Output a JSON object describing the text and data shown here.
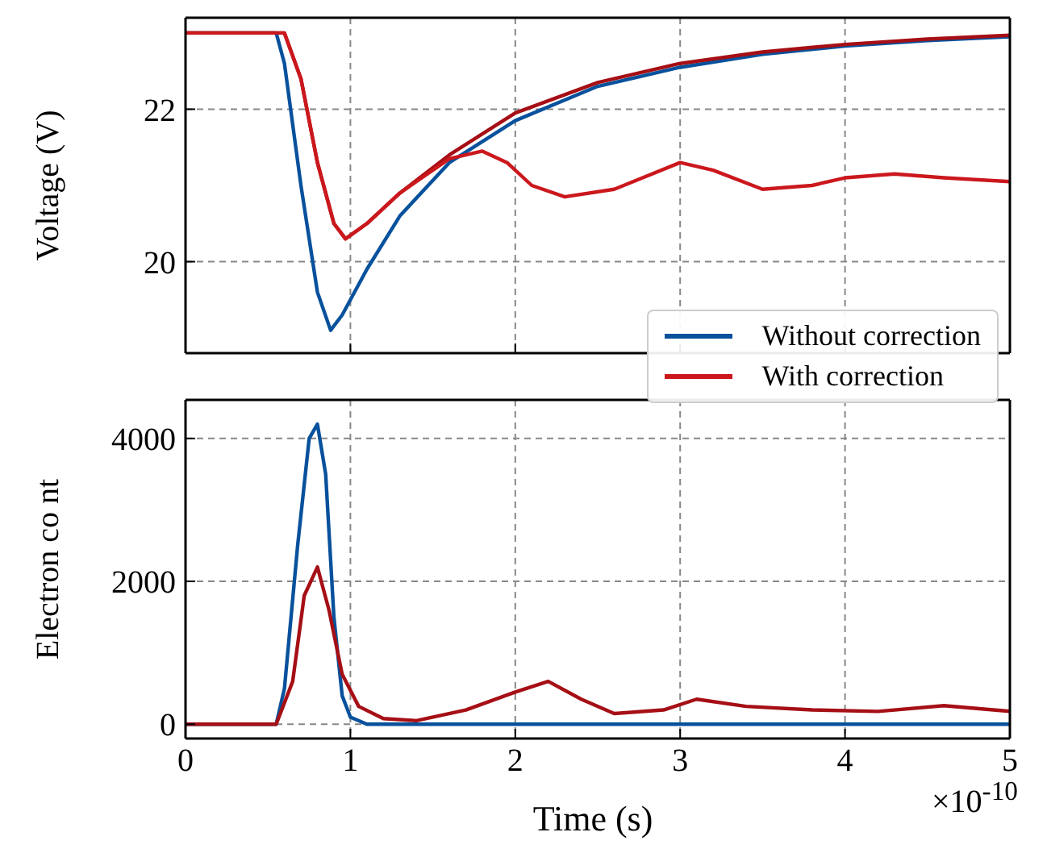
{
  "chart_data": [
    {
      "type": "line",
      "ylabel": "Voltage (V)",
      "xlim": [
        0,
        5
      ],
      "xticks": [
        0,
        1,
        2,
        3,
        4,
        5
      ],
      "ylim": [
        18.8,
        23.2
      ],
      "yticks": [
        20,
        22
      ],
      "grid": true,
      "tick_labels": "y",
      "legend": "bottom right",
      "line_style": "solid",
      "marker": "none",
      "series": [
        {
          "name": "Without correction",
          "color": "#08519c",
          "x": [
            0,
            0.55,
            0.6,
            0.7,
            0.8,
            0.88,
            0.95,
            1.1,
            1.3,
            1.6,
            2.0,
            2.5,
            3.0,
            3.5,
            4.0,
            4.5,
            5.0
          ],
          "values": [
            23.0,
            23.0,
            22.6,
            21.0,
            19.6,
            19.1,
            19.3,
            19.9,
            20.6,
            21.3,
            21.85,
            22.3,
            22.55,
            22.72,
            22.83,
            22.9,
            22.95
          ]
        },
        {
          "color": "#a50f15",
          "x": [
            0,
            0.6,
            0.7,
            0.8,
            0.9,
            0.97,
            1.1,
            1.3,
            1.6,
            2.0,
            2.5,
            3.0,
            3.5,
            4.0,
            4.5,
            5.0
          ],
          "values": [
            23.0,
            23.0,
            22.4,
            21.3,
            20.5,
            20.3,
            20.5,
            20.9,
            21.4,
            21.95,
            22.35,
            22.6,
            22.75,
            22.85,
            22.92,
            22.97
          ]
        },
        {
          "name": "With correction",
          "color": "#cb181d",
          "x": [
            0,
            0.6,
            0.7,
            0.8,
            0.9,
            0.97,
            1.1,
            1.3,
            1.6,
            1.8,
            1.95,
            2.1,
            2.3,
            2.6,
            3.0,
            3.2,
            3.5,
            3.8,
            4.0,
            4.3,
            4.6,
            5.0
          ],
          "values": [
            23.0,
            23.0,
            22.4,
            21.3,
            20.5,
            20.3,
            20.5,
            20.9,
            21.35,
            21.45,
            21.3,
            21.0,
            20.85,
            20.95,
            21.3,
            21.2,
            20.95,
            21.0,
            21.1,
            21.15,
            21.1,
            21.05
          ]
        }
      ]
    },
    {
      "type": "line",
      "ylabel": "Electron co nt",
      "xlabel": "Time (s)",
      "annotations": [
        "×10$^{-10}$"
      ],
      "xlim": [
        0,
        5
      ],
      "xticks": [
        0,
        1,
        2,
        3,
        4,
        5
      ],
      "ylim": [
        -200,
        4540
      ],
      "yticks": [
        0,
        2000,
        4000
      ],
      "grid": true,
      "line_style": "solid",
      "marker": "none",
      "series": [
        {
          "color": "#08519c",
          "x": [
            0,
            0.55,
            0.6,
            0.68,
            0.75,
            0.8,
            0.85,
            0.9,
            0.95,
            1.0,
            1.1,
            5.0
          ],
          "values": [
            0,
            0,
            500,
            2500,
            4000,
            4200,
            3500,
            1500,
            400,
            100,
            0,
            0
          ]
        },
        {
          "color": "#a50f15",
          "x": [
            0,
            0.55,
            0.65,
            0.72,
            0.8,
            0.87,
            0.95,
            1.05,
            1.2,
            1.4,
            1.7,
            2.0,
            2.2,
            2.4,
            2.6,
            2.9,
            3.1,
            3.4,
            3.8,
            4.2,
            4.6,
            5.0
          ],
          "values": [
            0,
            0,
            600,
            1800,
            2200,
            1600,
            700,
            250,
            80,
            50,
            200,
            450,
            600,
            350,
            150,
            200,
            350,
            250,
            200,
            180,
            260,
            180
          ]
        }
      ]
    }
  ]
}
